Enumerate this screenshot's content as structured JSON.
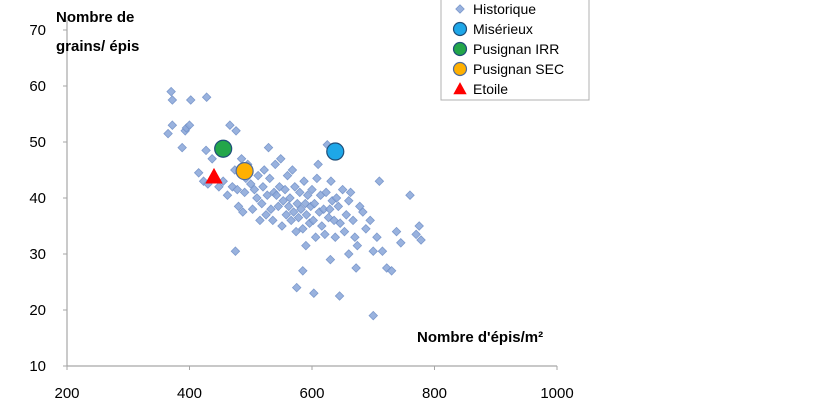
{
  "chart_data": {
    "type": "scatter",
    "ylabel_lines": [
      "Nombre de",
      "grains/ épis"
    ],
    "xlabel": "Nombre d'épis/m²",
    "xlim": [
      200,
      1000
    ],
    "ylim": [
      10,
      70
    ],
    "x_ticks": [
      "200",
      "400",
      "600",
      "800",
      "1000"
    ],
    "y_ticks": [
      "10",
      "20",
      "30",
      "40",
      "50",
      "60",
      "70"
    ],
    "grid": false,
    "legend_position": "top-right",
    "series": [
      {
        "name": "Historique",
        "marker": "diamond",
        "color": "#8eaadb",
        "stroke": "#6f8fc7",
        "points": [
          [
            370,
            59
          ],
          [
            372,
            57.5
          ],
          [
            365,
            51.5
          ],
          [
            372,
            53
          ],
          [
            388,
            49
          ],
          [
            393,
            52
          ],
          [
            395,
            52.5
          ],
          [
            400,
            53
          ],
          [
            402,
            57.5
          ],
          [
            428,
            58
          ],
          [
            415,
            44.5
          ],
          [
            423,
            43
          ],
          [
            430,
            42.5
          ],
          [
            427,
            48.5
          ],
          [
            437,
            47
          ],
          [
            448,
            42
          ],
          [
            455,
            43
          ],
          [
            460,
            49.5
          ],
          [
            462,
            40.5
          ],
          [
            466,
            53
          ],
          [
            470,
            42
          ],
          [
            474,
            45
          ],
          [
            476,
            52
          ],
          [
            478,
            41.5
          ],
          [
            480,
            38.5
          ],
          [
            485,
            47
          ],
          [
            487,
            37.5
          ],
          [
            490,
            41
          ],
          [
            492,
            43.5
          ],
          [
            495,
            46
          ],
          [
            500,
            42.5
          ],
          [
            503,
            38
          ],
          [
            506,
            41.5
          ],
          [
            510,
            40
          ],
          [
            512,
            44
          ],
          [
            515,
            36
          ],
          [
            518,
            39
          ],
          [
            520,
            42
          ],
          [
            522,
            45
          ],
          [
            525,
            37
          ],
          [
            527,
            40.5
          ],
          [
            529,
            49
          ],
          [
            531,
            43.5
          ],
          [
            533,
            38
          ],
          [
            536,
            36
          ],
          [
            538,
            41
          ],
          [
            540,
            46
          ],
          [
            542,
            40.5
          ],
          [
            545,
            38.5
          ],
          [
            547,
            42
          ],
          [
            549,
            47
          ],
          [
            551,
            35
          ],
          [
            553,
            39.5
          ],
          [
            556,
            41.5
          ],
          [
            558,
            37
          ],
          [
            560,
            44
          ],
          [
            562,
            38.5
          ],
          [
            564,
            40
          ],
          [
            566,
            36
          ],
          [
            568,
            45
          ],
          [
            570,
            37.5
          ],
          [
            572,
            42
          ],
          [
            574,
            34
          ],
          [
            576,
            39
          ],
          [
            578,
            36.5
          ],
          [
            580,
            41
          ],
          [
            582,
            38
          ],
          [
            585,
            34.5
          ],
          [
            587,
            43
          ],
          [
            589,
            39
          ],
          [
            591,
            37
          ],
          [
            593,
            40.5
          ],
          [
            596,
            35.5
          ],
          [
            598,
            38.5
          ],
          [
            600,
            41.5
          ],
          [
            602,
            36
          ],
          [
            604,
            39
          ],
          [
            606,
            33
          ],
          [
            608,
            43.5
          ],
          [
            610,
            46
          ],
          [
            612,
            37.5
          ],
          [
            614,
            40.5
          ],
          [
            616,
            35
          ],
          [
            619,
            38
          ],
          [
            621,
            33.5
          ],
          [
            623,
            41
          ],
          [
            625,
            49.5
          ],
          [
            627,
            36.5
          ],
          [
            629,
            38
          ],
          [
            631,
            43
          ],
          [
            633,
            39.5
          ],
          [
            636,
            36
          ],
          [
            638,
            33
          ],
          [
            640,
            40
          ],
          [
            643,
            38.5
          ],
          [
            646,
            35.5
          ],
          [
            650,
            41.5
          ],
          [
            653,
            34
          ],
          [
            656,
            37
          ],
          [
            660,
            39.5
          ],
          [
            663,
            41
          ],
          [
            667,
            36
          ],
          [
            670,
            33
          ],
          [
            674,
            31.5
          ],
          [
            678,
            38.5
          ],
          [
            683,
            37.5
          ],
          [
            688,
            34.5
          ],
          [
            695,
            36
          ],
          [
            700,
            30.5
          ],
          [
            706,
            33
          ],
          [
            710,
            43
          ],
          [
            715,
            30.5
          ],
          [
            722,
            27.5
          ],
          [
            730,
            27
          ],
          [
            738,
            34
          ],
          [
            745,
            32
          ],
          [
            760,
            40.5
          ],
          [
            770,
            33.5
          ],
          [
            775,
            35
          ],
          [
            778,
            32.5
          ],
          [
            575,
            24
          ],
          [
            585,
            27
          ],
          [
            590,
            31.5
          ],
          [
            603,
            23
          ],
          [
            630,
            29
          ],
          [
            645,
            22.5
          ],
          [
            672,
            27.5
          ],
          [
            700,
            19
          ],
          [
            475,
            30.5
          ],
          [
            660,
            30
          ]
        ]
      },
      {
        "name": "Misérieux",
        "marker": "circle",
        "color": "#1ea7e8",
        "stroke": "#1f4e79",
        "points": [
          [
            638,
            48.3
          ]
        ]
      },
      {
        "name": "Pusignan IRR",
        "marker": "circle",
        "color": "#23a64a",
        "stroke": "#1f4e79",
        "points": [
          [
            455,
            48.8
          ]
        ]
      },
      {
        "name": "Pusignan SEC",
        "marker": "circle",
        "color": "#ffb000",
        "stroke": "#4f6b9a",
        "points": [
          [
            490,
            44.8
          ]
        ]
      },
      {
        "name": "Etoile",
        "marker": "triangle",
        "color": "#ff0000",
        "stroke": "#ff0000",
        "points": [
          [
            440,
            43.8
          ]
        ]
      }
    ]
  }
}
